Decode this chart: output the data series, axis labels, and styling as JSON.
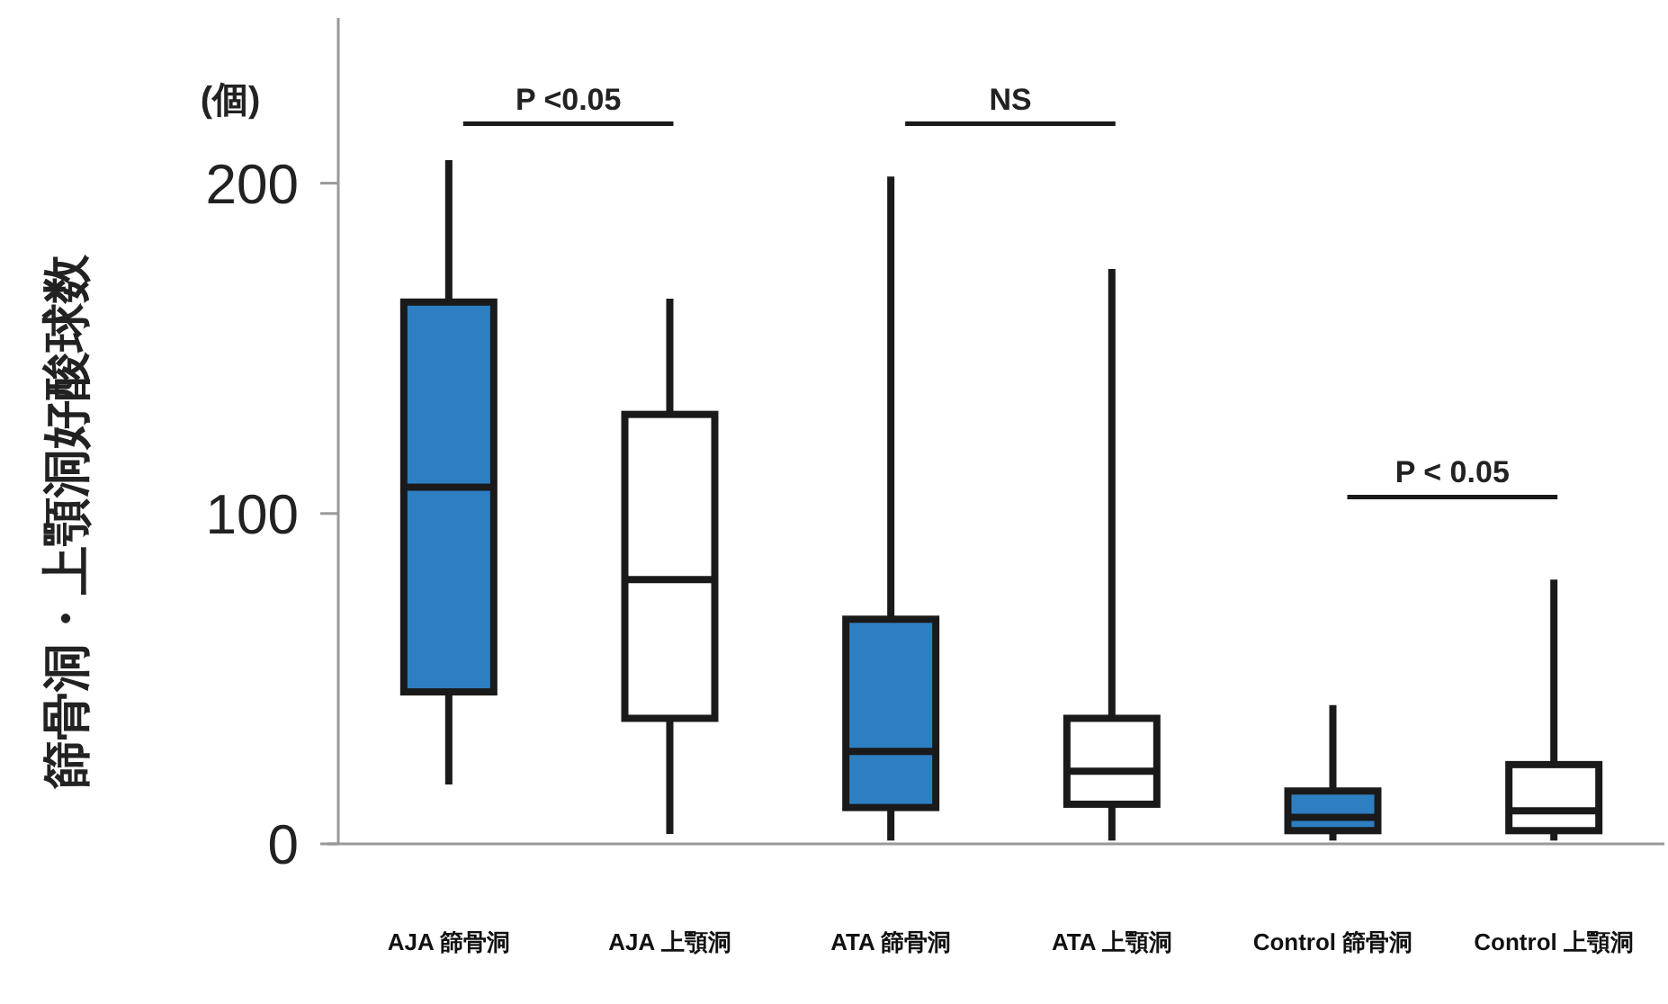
{
  "chart_data": {
    "type": "box",
    "ylabel": "篩骨洞・上顎洞好酸球数",
    "annotations": [
      "(個)",
      "P <0.05",
      "NS",
      "P < 0.05"
    ],
    "categories": [
      "AJA 篩骨洞",
      "AJA 上顎洞",
      "ATA 篩骨洞",
      "ATA 上顎洞",
      "Control 篩骨洞",
      "Control 上顎洞"
    ],
    "colors": [
      "#2e7fc2",
      "#ffffff",
      "#2e7fc2",
      "#ffffff",
      "#2e7fc2",
      "#ffffff"
    ],
    "boxes": [
      {
        "low": 18,
        "q1": 46,
        "median": 108,
        "q3": 164,
        "high": 207
      },
      {
        "low": 3,
        "q1": 38,
        "median": 80,
        "q3": 130,
        "high": 165
      },
      {
        "low": 1,
        "q1": 11,
        "median": 28,
        "q3": 68,
        "high": 202
      },
      {
        "low": 1,
        "q1": 12,
        "median": 22,
        "q3": 38,
        "high": 174
      },
      {
        "low": 1,
        "q1": 4,
        "median": 8,
        "q3": 16,
        "high": 42
      },
      {
        "low": 1,
        "q1": 4,
        "median": 10,
        "q3": 24,
        "high": 80
      }
    ],
    "ylim": [
      0,
      250
    ],
    "yticks": [
      0,
      100,
      200
    ],
    "grid": false
  }
}
